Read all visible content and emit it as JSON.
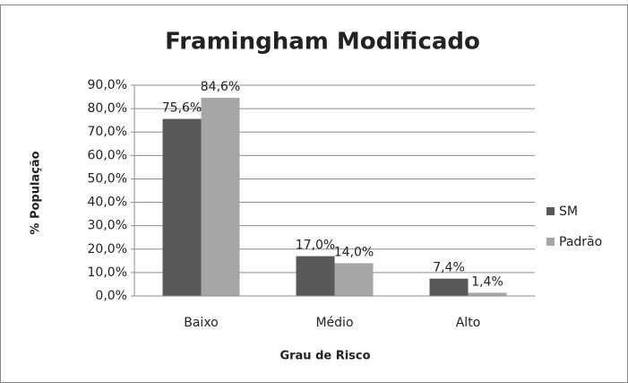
{
  "chart_data": {
    "type": "bar",
    "title": "Framingham Modificado",
    "ylabel": "% População",
    "xlabel": "Grau de Risco",
    "categories": [
      "Baixo",
      "Médio",
      "Alto"
    ],
    "series": [
      {
        "name": "SM",
        "color": "#595959",
        "values": [
          75.6,
          17.0,
          7.4
        ],
        "value_labels": [
          "75,6%",
          "17,0%",
          "7,4%"
        ]
      },
      {
        "name": "Padrão",
        "color": "#a6a6a6",
        "values": [
          84.6,
          14.0,
          1.4
        ],
        "value_labels": [
          "84,6%",
          "14,0%",
          "1,4%"
        ]
      }
    ],
    "ylim": [
      0,
      90
    ],
    "yticks": [
      {
        "value": 0,
        "label": "0,0%"
      },
      {
        "value": 10,
        "label": "10,0%"
      },
      {
        "value": 20,
        "label": "20,0%"
      },
      {
        "value": 30,
        "label": "30,0%"
      },
      {
        "value": 40,
        "label": "40,0%"
      },
      {
        "value": 50,
        "label": "50,0%"
      },
      {
        "value": 60,
        "label": "60,0%"
      },
      {
        "value": 70,
        "label": "70,0%"
      },
      {
        "value": 80,
        "label": "80,0%"
      },
      {
        "value": 90,
        "label": "90,0%"
      }
    ],
    "grid": true,
    "legend": "right"
  }
}
